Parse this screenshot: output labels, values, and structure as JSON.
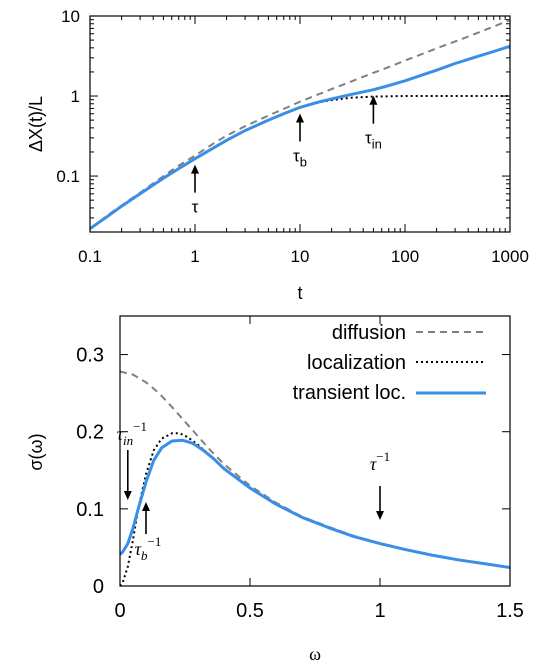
{
  "chart_data": [
    {
      "type": "line",
      "title": "",
      "xlabel": "t",
      "ylabel": "ΔX(t)/L",
      "xscale": "log",
      "yscale": "log",
      "xlim": [
        0.1,
        1000
      ],
      "ylim": [
        0.02,
        10
      ],
      "xticks": [
        {
          "value": 0.1,
          "label": "0.1"
        },
        {
          "value": 1,
          "label": "1"
        },
        {
          "value": 10,
          "label": "10"
        },
        {
          "value": 100,
          "label": "100"
        },
        {
          "value": 1000,
          "label": "1000"
        }
      ],
      "yticks": [
        {
          "value": 0.1,
          "label": "0.1"
        },
        {
          "value": 1,
          "label": "1"
        },
        {
          "value": 10,
          "label": "10"
        }
      ],
      "grid": false,
      "series": [
        {
          "key": "diffusion",
          "color": "#808080",
          "dash": "dashed",
          "x": [
            0.1,
            0.15,
            0.2,
            0.3,
            0.5,
            0.7,
            1,
            1.5,
            2,
            3,
            5,
            7,
            10,
            15,
            20,
            30,
            50,
            70,
            100,
            150,
            200,
            300,
            500,
            700,
            1000
          ],
          "y": [
            0.022,
            0.033,
            0.043,
            0.062,
            0.1,
            0.135,
            0.18,
            0.255,
            0.32,
            0.42,
            0.57,
            0.69,
            0.85,
            1.05,
            1.22,
            1.5,
            1.95,
            2.3,
            2.78,
            3.4,
            3.95,
            4.8,
            6.2,
            7.4,
            8.9
          ]
        },
        {
          "key": "localization",
          "color": "#000000",
          "dash": "dotted",
          "x": [
            0.1,
            0.15,
            0.2,
            0.3,
            0.5,
            0.7,
            1,
            1.5,
            2,
            3,
            5,
            7,
            10,
            15,
            20,
            30,
            50,
            100,
            200,
            500,
            1000
          ],
          "y": [
            0.022,
            0.032,
            0.042,
            0.06,
            0.094,
            0.124,
            0.165,
            0.225,
            0.28,
            0.37,
            0.5,
            0.6,
            0.72,
            0.83,
            0.89,
            0.95,
            0.985,
            1.0,
            1.0,
            1.0,
            1.0
          ]
        },
        {
          "key": "transient",
          "color": "#3a8ee6",
          "dash": "solid",
          "x": [
            0.1,
            0.15,
            0.2,
            0.3,
            0.5,
            0.7,
            1,
            1.5,
            2,
            3,
            5,
            7,
            10,
            15,
            20,
            30,
            50,
            70,
            100,
            150,
            200,
            300,
            500,
            700,
            1000
          ],
          "y": [
            0.022,
            0.032,
            0.042,
            0.06,
            0.094,
            0.124,
            0.165,
            0.225,
            0.28,
            0.37,
            0.5,
            0.6,
            0.72,
            0.84,
            0.92,
            1.04,
            1.2,
            1.35,
            1.55,
            1.85,
            2.1,
            2.55,
            3.15,
            3.6,
            4.2
          ]
        }
      ],
      "annotations": [
        {
          "text": "τ",
          "sub": "",
          "x": 1,
          "arrow": "up"
        },
        {
          "text": "τ",
          "sub": "b",
          "x": 10,
          "arrow": "up"
        },
        {
          "text": "τ",
          "sub": "in",
          "x": 50,
          "arrow": "up"
        }
      ]
    },
    {
      "type": "line",
      "title": "",
      "xlabel": "ω",
      "ylabel": "σ(ω)",
      "xlim": [
        0,
        1.5
      ],
      "ylim": [
        0,
        0.35
      ],
      "xticks": [
        {
          "value": 0,
          "label": "0"
        },
        {
          "value": 0.5,
          "label": "0.5"
        },
        {
          "value": 1,
          "label": "1"
        },
        {
          "value": 1.5,
          "label": "1.5"
        }
      ],
      "yticks": [
        {
          "value": 0,
          "label": "0"
        },
        {
          "value": 0.1,
          "label": "0.1"
        },
        {
          "value": 0.2,
          "label": "0.2"
        },
        {
          "value": 0.3,
          "label": "0.3"
        }
      ],
      "grid": false,
      "legend_position": "top-right",
      "series": [
        {
          "name": "diffusion",
          "color": "#808080",
          "dash": "dashed",
          "x": [
            0,
            0.05,
            0.1,
            0.15,
            0.2,
            0.25,
            0.3,
            0.35,
            0.4,
            0.5,
            0.6,
            0.7,
            0.8,
            0.9,
            1.0,
            1.1,
            1.2,
            1.3,
            1.4,
            1.5
          ],
          "y": [
            0.278,
            0.274,
            0.264,
            0.25,
            0.232,
            0.213,
            0.194,
            0.175,
            0.158,
            0.13,
            0.108,
            0.09,
            0.077,
            0.065,
            0.055,
            0.047,
            0.04,
            0.034,
            0.029,
            0.024
          ]
        },
        {
          "name": "localization",
          "color": "#000000",
          "dash": "dotted",
          "x": [
            0,
            0.01,
            0.03,
            0.05,
            0.07,
            0.1,
            0.13,
            0.16,
            0.2,
            0.23,
            0.26,
            0.3,
            0.35,
            0.4,
            0.5,
            0.6,
            0.7,
            0.8,
            0.9,
            1.0,
            1.1,
            1.2,
            1.3,
            1.4,
            1.5
          ],
          "y": [
            0.0,
            0.004,
            0.025,
            0.06,
            0.1,
            0.145,
            0.176,
            0.191,
            0.198,
            0.198,
            0.193,
            0.183,
            0.168,
            0.153,
            0.127,
            0.106,
            0.089,
            0.076,
            0.064,
            0.055,
            0.047,
            0.04,
            0.034,
            0.029,
            0.024
          ]
        },
        {
          "name": "transient loc.",
          "color": "#3a8ee6",
          "dash": "solid",
          "x": [
            0,
            0.01,
            0.03,
            0.05,
            0.07,
            0.1,
            0.13,
            0.16,
            0.2,
            0.24,
            0.28,
            0.32,
            0.36,
            0.4,
            0.5,
            0.6,
            0.7,
            0.8,
            0.9,
            1.0,
            1.1,
            1.2,
            1.3,
            1.4,
            1.5
          ],
          "y": [
            0.041,
            0.044,
            0.055,
            0.075,
            0.1,
            0.135,
            0.163,
            0.179,
            0.188,
            0.189,
            0.185,
            0.176,
            0.165,
            0.152,
            0.127,
            0.106,
            0.089,
            0.076,
            0.064,
            0.055,
            0.047,
            0.04,
            0.034,
            0.029,
            0.024
          ]
        }
      ],
      "annotations": [
        {
          "key": "tau_in_inv",
          "base": "τ",
          "sub": "in",
          "sup": "−1",
          "x": 0.03,
          "arrow": "down"
        },
        {
          "key": "tau_b_inv",
          "base": "τ",
          "sub": "b",
          "sup": "−1",
          "x": 0.1,
          "arrow": "up"
        },
        {
          "key": "tau_inv",
          "base": "τ",
          "sub": "",
          "sup": "−1",
          "x": 1.0,
          "arrow": "down"
        }
      ]
    }
  ]
}
